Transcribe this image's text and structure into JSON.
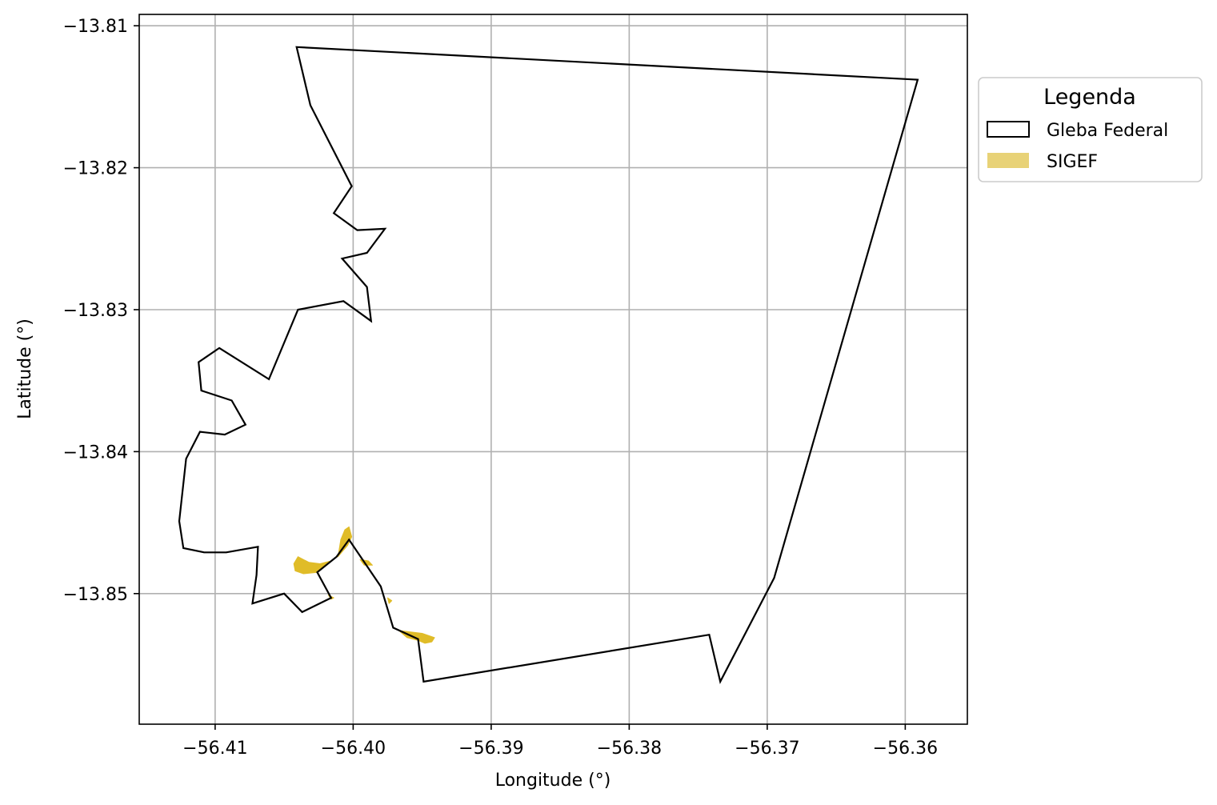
{
  "chart_data": {
    "type": "map",
    "xlabel": "Longitude (°)",
    "ylabel": "Latitude (°)",
    "xlim": [
      -56.4155,
      -56.3555
    ],
    "ylim": [
      -13.8592,
      -13.8092
    ],
    "grid": true,
    "x_ticks": [
      -56.41,
      -56.4,
      -56.39,
      -56.38,
      -56.37,
      -56.36
    ],
    "x_tick_labels": [
      "−56.41",
      "−56.40",
      "−56.39",
      "−56.38",
      "−56.37",
      "−56.36"
    ],
    "y_ticks": [
      -13.81,
      -13.82,
      -13.83,
      -13.84,
      -13.85
    ],
    "y_tick_labels": [
      "−13.81",
      "−13.82",
      "−13.83",
      "−13.84",
      "−13.85"
    ],
    "legend": {
      "title": "Legenda",
      "placement": "outside-top-right",
      "entries": [
        {
          "label": "Gleba Federal",
          "style": "outline",
          "color": "#000000"
        },
        {
          "label": "SIGEF",
          "style": "fill",
          "color": "#E8D277"
        }
      ]
    },
    "layers": [
      {
        "name": "Gleba Federal",
        "stroke": "#000000",
        "fill": "none",
        "polygons": [
          [
            [
              -56.4041,
              -13.8115
            ],
            [
              -56.3591,
              -13.8138
            ],
            [
              -56.3695,
              -13.8489
            ],
            [
              -56.3734,
              -13.8562
            ],
            [
              -56.3742,
              -13.8529
            ],
            [
              -56.3949,
              -13.8562
            ],
            [
              -56.3953,
              -13.8532
            ],
            [
              -56.3971,
              -13.8524
            ],
            [
              -56.398,
              -13.8495
            ],
            [
              -56.4003,
              -13.8462
            ],
            [
              -56.4012,
              -13.8474
            ],
            [
              -56.4026,
              -13.8485
            ],
            [
              -56.4016,
              -13.8503
            ],
            [
              -56.4037,
              -13.8513
            ],
            [
              -56.405,
              -13.85
            ],
            [
              -56.4073,
              -13.8507
            ],
            [
              -56.407,
              -13.8487
            ],
            [
              -56.4069,
              -13.8467
            ],
            [
              -56.4092,
              -13.8471
            ],
            [
              -56.4108,
              -13.8471
            ],
            [
              -56.4123,
              -13.8468
            ],
            [
              -56.4126,
              -13.8449
            ],
            [
              -56.4121,
              -13.8405
            ],
            [
              -56.4111,
              -13.8386
            ],
            [
              -56.4093,
              -13.8388
            ],
            [
              -56.4078,
              -13.8381
            ],
            [
              -56.4088,
              -13.8364
            ],
            [
              -56.411,
              -13.8357
            ],
            [
              -56.4112,
              -13.8337
            ],
            [
              -56.4097,
              -13.8327
            ],
            [
              -56.4061,
              -13.8349
            ],
            [
              -56.404,
              -13.83
            ],
            [
              -56.4007,
              -13.8294
            ],
            [
              -56.3987,
              -13.8308
            ],
            [
              -56.399,
              -13.8284
            ],
            [
              -56.4008,
              -13.8264
            ],
            [
              -56.399,
              -13.826
            ],
            [
              -56.3977,
              -13.8243
            ],
            [
              -56.3997,
              -13.8244
            ],
            [
              -56.4014,
              -13.8232
            ],
            [
              -56.4001,
              -13.8213
            ],
            [
              -56.4031,
              -13.8156
            ]
          ]
        ]
      },
      {
        "name": "SIGEF",
        "stroke": "none",
        "fill": "#E0BC28",
        "polygons": [
          [
            [
              -56.4003,
              -13.8453
            ],
            [
              -56.4001,
              -13.846
            ],
            [
              -56.4004,
              -13.8466
            ],
            [
              -56.4011,
              -13.8474
            ],
            [
              -56.4009,
              -13.8462
            ],
            [
              -56.4006,
              -13.8455
            ]
          ],
          [
            [
              -56.404,
              -13.8474
            ],
            [
              -56.4043,
              -13.8479
            ],
            [
              -56.4042,
              -13.8484
            ],
            [
              -56.4036,
              -13.8486
            ],
            [
              -56.4026,
              -13.8485
            ],
            [
              -56.4016,
              -13.8477
            ],
            [
              -56.4024,
              -13.8479
            ],
            [
              -56.4032,
              -13.8478
            ]
          ],
          [
            [
              -56.3995,
              -13.8476
            ],
            [
              -56.3989,
              -13.8477
            ],
            [
              -56.3986,
              -13.848
            ],
            [
              -56.3992,
              -13.848
            ]
          ],
          [
            [
              -56.4018,
              -13.8501
            ],
            [
              -56.4014,
              -13.8503
            ],
            [
              -56.4016,
              -13.8504
            ]
          ],
          [
            [
              -56.3975,
              -13.8503
            ],
            [
              -56.3972,
              -13.8505
            ],
            [
              -56.3974,
              -13.8507
            ]
          ],
          [
            [
              -56.3967,
              -13.8526
            ],
            [
              -56.395,
              -13.8528
            ],
            [
              -56.3941,
              -13.8531
            ],
            [
              -56.3943,
              -13.8534
            ],
            [
              -56.3948,
              -13.8535
            ],
            [
              -56.3953,
              -13.8533
            ],
            [
              -56.3961,
              -13.8531
            ]
          ]
        ]
      }
    ]
  }
}
